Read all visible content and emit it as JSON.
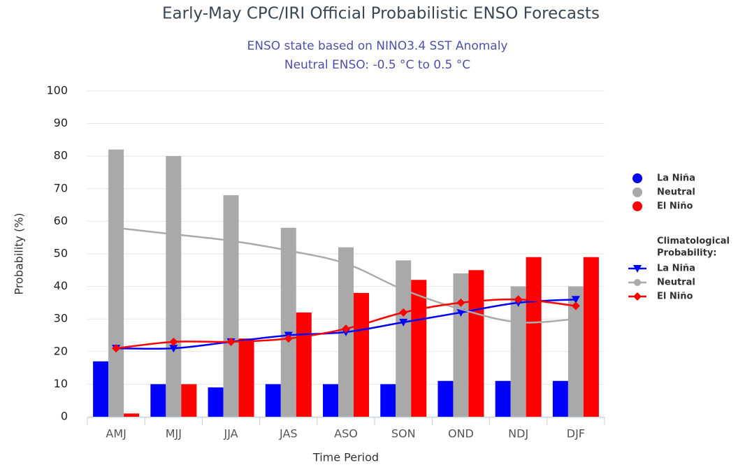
{
  "chart_data": {
    "type": "bar",
    "title": "Early-May CPC/IRI Official Probabilistic ENSO Forecasts",
    "subtitle": [
      "ENSO state based on NINO3.4 SST Anomaly",
      "Neutral ENSO: -0.5 °C to 0.5 °C"
    ],
    "x_label": "Time Period",
    "y_label": "Probability (%)",
    "categories": [
      "AMJ",
      "MJJ",
      "JJA",
      "JAS",
      "ASO",
      "SON",
      "OND",
      "NDJ",
      "DJF"
    ],
    "ylim": [
      0,
      100
    ],
    "yticks": [
      0,
      10,
      20,
      30,
      40,
      50,
      60,
      70,
      80,
      90,
      100
    ],
    "grid": true,
    "legend_title": [
      "Climatological",
      "Probability:"
    ],
    "series": [
      {
        "name": "La Niña",
        "type": "bar",
        "color": "#0000ff",
        "values": [
          17,
          10,
          9,
          10,
          10,
          10,
          11,
          11,
          11
        ]
      },
      {
        "name": "Neutral",
        "type": "bar",
        "color": "#a9a9a9",
        "values": [
          82,
          80,
          68,
          58,
          52,
          48,
          44,
          40,
          40
        ]
      },
      {
        "name": "El Niño",
        "type": "bar",
        "color": "#ff0000",
        "values": [
          1,
          10,
          24,
          32,
          38,
          42,
          45,
          49,
          49
        ]
      },
      {
        "name": "La Niña",
        "type": "line",
        "marker": "triangle-down",
        "color": "#0000ff",
        "values": [
          21,
          21,
          23,
          25,
          26,
          29,
          32,
          35,
          36
        ]
      },
      {
        "name": "Neutral",
        "type": "line",
        "marker": "none",
        "color": "#aaaaaa",
        "values": [
          58,
          56,
          54,
          51,
          47,
          39,
          33,
          29,
          30
        ]
      },
      {
        "name": "El Niño",
        "type": "line",
        "marker": "diamond",
        "color": "#ff0000",
        "values": [
          21,
          23,
          23,
          24,
          27,
          32,
          35,
          36,
          34
        ]
      }
    ]
  }
}
